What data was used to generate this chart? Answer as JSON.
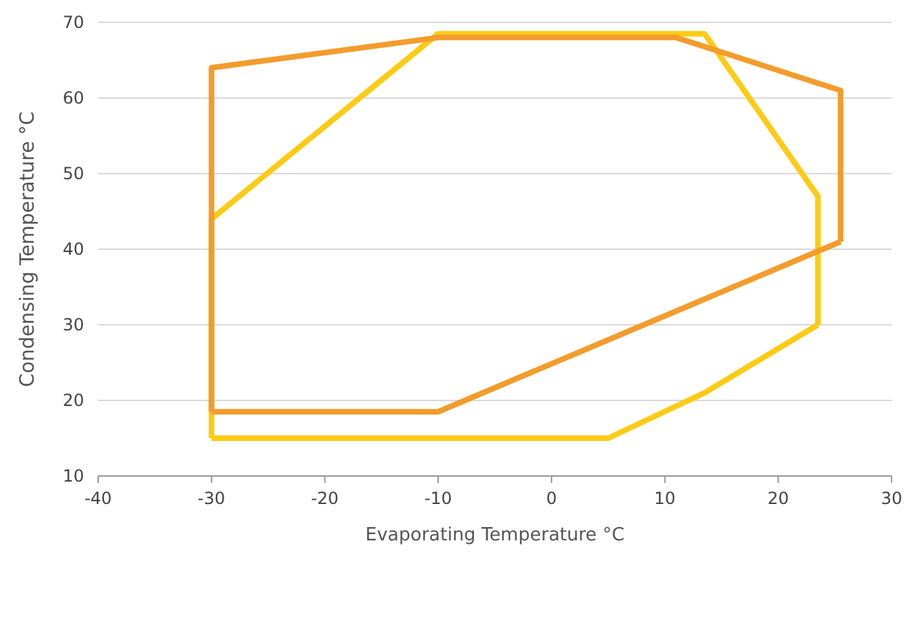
{
  "chart_data": {
    "type": "line",
    "xlabel": "Evaporating Temperature °C",
    "ylabel": "Condensing Temperature °C",
    "xlim": [
      -40,
      30
    ],
    "xticks": [
      -40,
      -30,
      -20,
      -10,
      0,
      10,
      20,
      30
    ],
    "ylim": [
      10,
      70
    ],
    "yticks": [
      10,
      20,
      30,
      40,
      50,
      60,
      70
    ],
    "grid": "y",
    "marker": "none",
    "line_style": "solid",
    "series": [
      {
        "color": "#fccb14",
        "x": [
          -30,
          -30,
          -10,
          13.5,
          23.5,
          23.5
        ],
        "values": [
          15,
          44,
          68.5,
          68.5,
          47,
          30
        ]
      },
      {
        "color": "#fccb14",
        "x": [
          -30,
          5,
          13.5,
          23.5
        ],
        "values": [
          15,
          15,
          21,
          30
        ]
      },
      {
        "color": "#f39c2d",
        "x": [
          -30,
          -30,
          -10,
          11,
          25.5,
          25.5
        ],
        "values": [
          18.5,
          64,
          68,
          68,
          61,
          41
        ]
      },
      {
        "color": "#f39c2d",
        "x": [
          -30,
          -10,
          25.5
        ],
        "values": [
          18.5,
          18.5,
          41
        ]
      }
    ]
  }
}
